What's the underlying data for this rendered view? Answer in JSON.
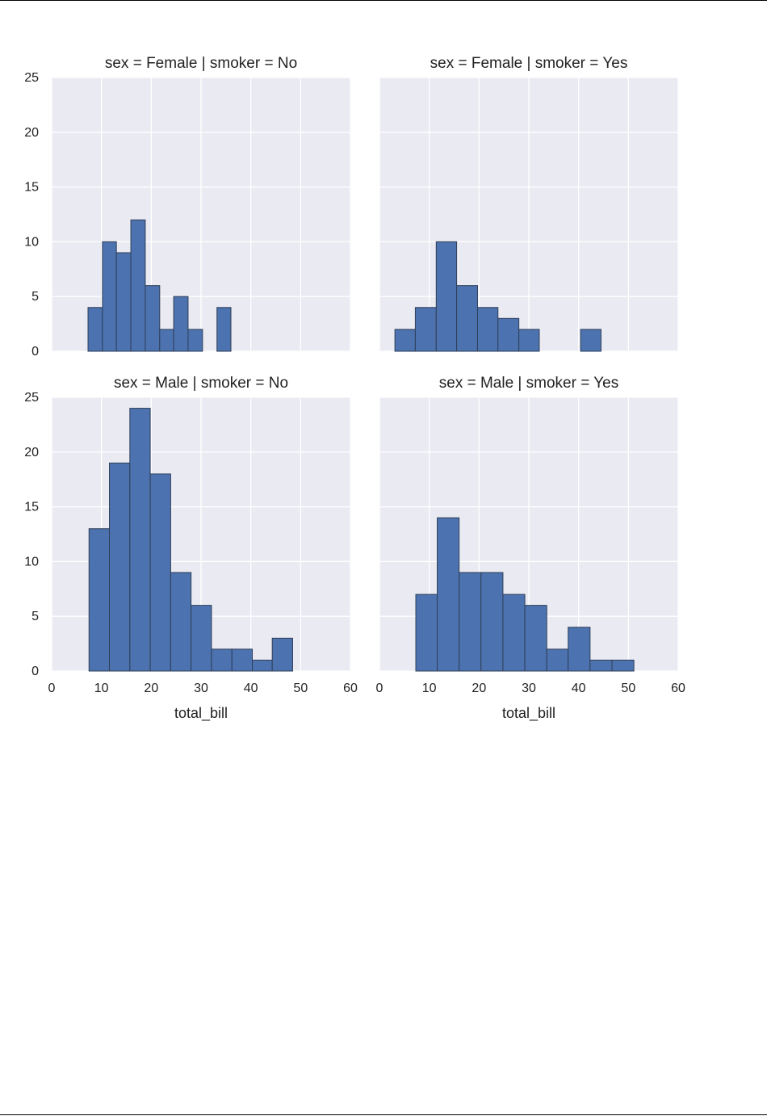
{
  "colors": {
    "page_background": "#ffffff",
    "panel_background": "#eaeaf2",
    "grid": "#ffffff",
    "bar_fill": "#4c72b0",
    "bar_edge": "#2f3f57",
    "text": "#222222",
    "page_rule": "#000000"
  },
  "chart_data": {
    "type": "bar",
    "grid": true,
    "sharex": true,
    "sharey": true,
    "xlim": [
      0,
      60
    ],
    "ylim": [
      0,
      25
    ],
    "xticks": [
      0,
      10,
      20,
      30,
      40,
      50,
      60
    ],
    "yticks": [
      0,
      5,
      10,
      15,
      20,
      25
    ],
    "panels": [
      {
        "title": "sex = Female | smoker = No",
        "row": 0,
        "col": 0,
        "xlabel": "",
        "bins": [
          {
            "x0": 7.3,
            "x1": 10.2,
            "count": 4
          },
          {
            "x0": 10.2,
            "x1": 13.0,
            "count": 10
          },
          {
            "x0": 13.0,
            "x1": 15.9,
            "count": 9
          },
          {
            "x0": 15.9,
            "x1": 18.8,
            "count": 12
          },
          {
            "x0": 18.8,
            "x1": 21.7,
            "count": 6
          },
          {
            "x0": 21.7,
            "x1": 24.5,
            "count": 2
          },
          {
            "x0": 24.5,
            "x1": 27.4,
            "count": 5
          },
          {
            "x0": 27.4,
            "x1": 30.3,
            "count": 2
          },
          {
            "x0": 30.3,
            "x1": 33.2,
            "count": 0
          },
          {
            "x0": 33.2,
            "x1": 36.0,
            "count": 4
          }
        ]
      },
      {
        "title": "sex = Female | smoker = Yes",
        "row": 0,
        "col": 1,
        "xlabel": "",
        "bins": [
          {
            "x0": 3.1,
            "x1": 7.2,
            "count": 2
          },
          {
            "x0": 7.2,
            "x1": 11.4,
            "count": 4
          },
          {
            "x0": 11.4,
            "x1": 15.5,
            "count": 10
          },
          {
            "x0": 15.5,
            "x1": 19.7,
            "count": 6
          },
          {
            "x0": 19.7,
            "x1": 23.8,
            "count": 4
          },
          {
            "x0": 23.8,
            "x1": 28.0,
            "count": 3
          },
          {
            "x0": 28.0,
            "x1": 32.1,
            "count": 2
          },
          {
            "x0": 32.1,
            "x1": 36.3,
            "count": 0
          },
          {
            "x0": 36.3,
            "x1": 40.4,
            "count": 0
          },
          {
            "x0": 40.4,
            "x1": 44.5,
            "count": 2
          }
        ]
      },
      {
        "title": "sex = Male | smoker = No",
        "row": 1,
        "col": 0,
        "xlabel": "total_bill",
        "bins": [
          {
            "x0": 7.5,
            "x1": 11.6,
            "count": 13
          },
          {
            "x0": 11.6,
            "x1": 15.7,
            "count": 19
          },
          {
            "x0": 15.7,
            "x1": 19.8,
            "count": 24
          },
          {
            "x0": 19.8,
            "x1": 23.9,
            "count": 18
          },
          {
            "x0": 23.9,
            "x1": 28.0,
            "count": 9
          },
          {
            "x0": 28.0,
            "x1": 32.1,
            "count": 6
          },
          {
            "x0": 32.1,
            "x1": 36.2,
            "count": 2
          },
          {
            "x0": 36.2,
            "x1": 40.3,
            "count": 2
          },
          {
            "x0": 40.3,
            "x1": 44.3,
            "count": 1
          },
          {
            "x0": 44.3,
            "x1": 48.4,
            "count": 3
          }
        ]
      },
      {
        "title": "sex = Male | smoker = Yes",
        "row": 1,
        "col": 1,
        "xlabel": "total_bill",
        "bins": [
          {
            "x0": 7.3,
            "x1": 11.6,
            "count": 7
          },
          {
            "x0": 11.6,
            "x1": 16.0,
            "count": 14
          },
          {
            "x0": 16.0,
            "x1": 20.4,
            "count": 9
          },
          {
            "x0": 20.4,
            "x1": 24.8,
            "count": 9
          },
          {
            "x0": 24.8,
            "x1": 29.2,
            "count": 7
          },
          {
            "x0": 29.2,
            "x1": 33.6,
            "count": 6
          },
          {
            "x0": 33.6,
            "x1": 37.9,
            "count": 2
          },
          {
            "x0": 37.9,
            "x1": 42.3,
            "count": 4
          },
          {
            "x0": 42.3,
            "x1": 46.7,
            "count": 1
          },
          {
            "x0": 46.7,
            "x1": 51.1,
            "count": 1
          }
        ]
      }
    ]
  }
}
